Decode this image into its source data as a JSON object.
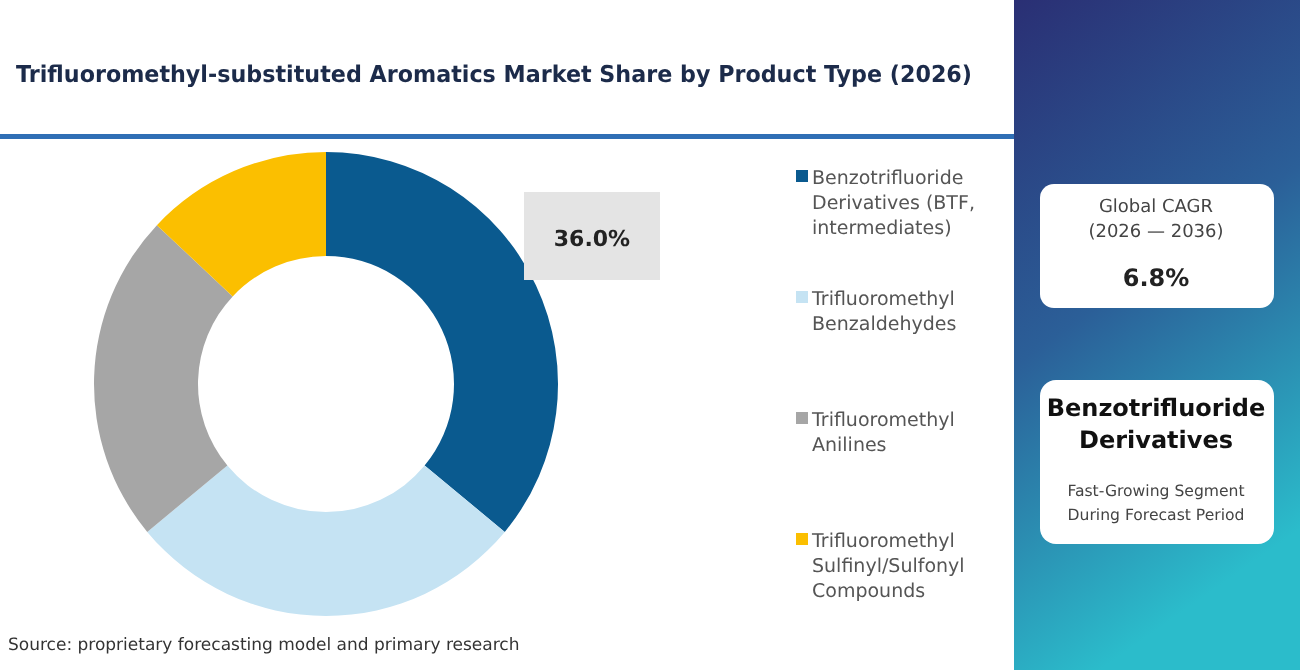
{
  "chart_data": {
    "type": "donut",
    "title": "Trifluoromethyl-substituted Aromatics Market Share by Product Type (2026)",
    "categories": [
      "Benzotrifluoride Derivatives (BTF, intermediates)",
      "Trifluoromethyl Benzaldehydes",
      "Trifluoromethyl Anilines",
      "Trifluoromethyl Sulfinyl/Sulfonyl Compounds"
    ],
    "values": [
      36,
      28,
      23,
      13
    ],
    "colors": [
      "#0a5a8f",
      "#c5e3f3",
      "#a6a6a6",
      "#fbbf00"
    ],
    "value_labels": [
      "36.0%",
      null,
      null,
      null
    ],
    "legend": "right",
    "annotations": [
      "Global CAGR (2026 — 2036)",
      "6.8%",
      "Benzotrifluoride Derivatives",
      "Fast-Growing Segment During Forecast Period",
      "Source: proprietary forecasting model and primary research"
    ]
  }
}
